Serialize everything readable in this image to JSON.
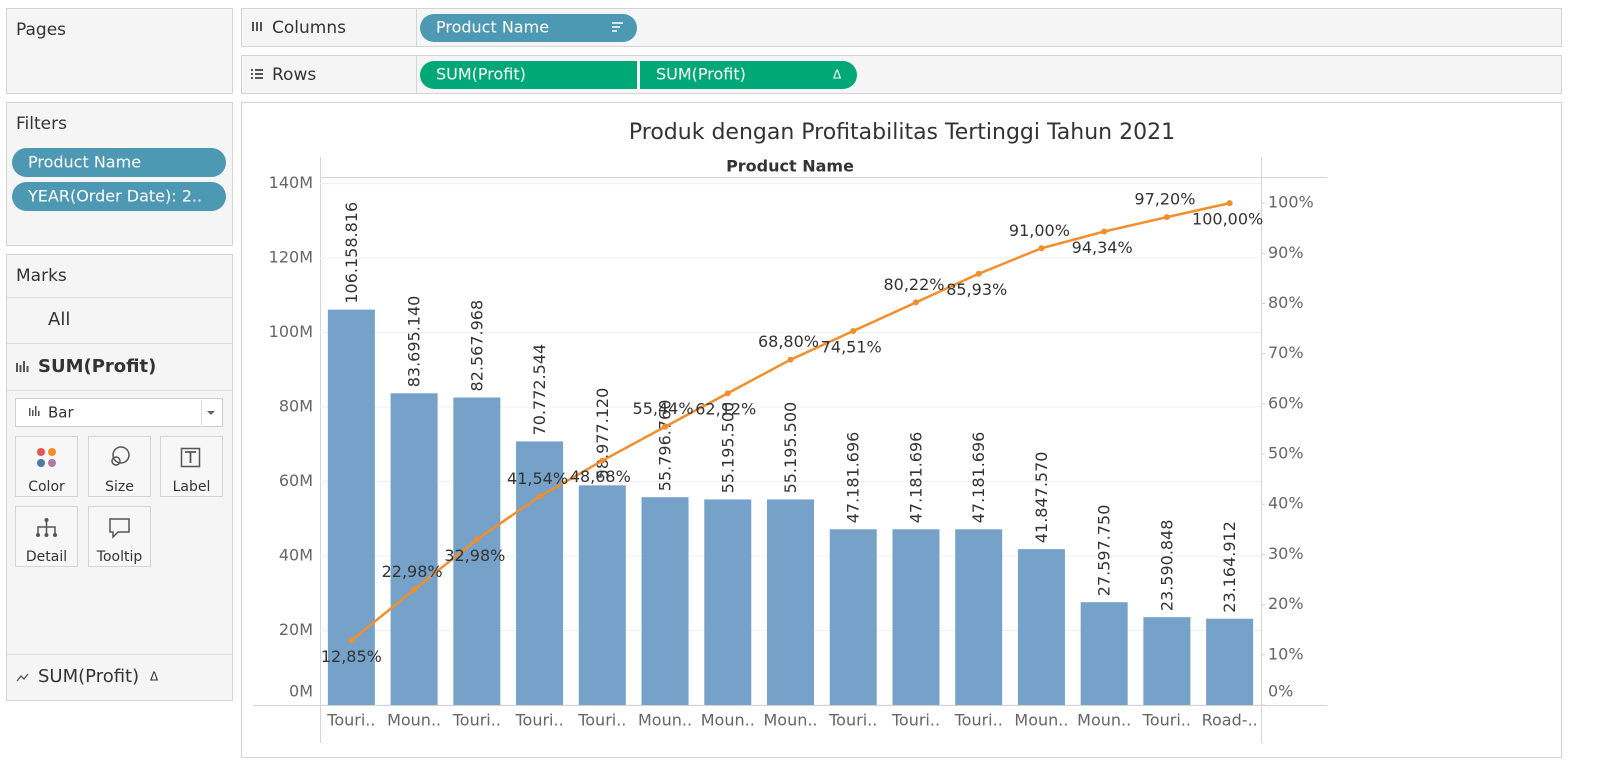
{
  "ui": {
    "pages": "Pages",
    "filters": "Filters",
    "year_filter": "YEAR(Order Date): 2..",
    "marks": "Marks",
    "all": "All",
    "mark_type": "Bar",
    "buttons": [
      "Color",
      "Size",
      "Label",
      "Detail",
      "Tooltip"
    ],
    "columns": "Columns",
    "rows": "Rows",
    "delta": "Δ"
  },
  "chart_data": {
    "type": "bar",
    "title": "Produk dengan Profitabilitas Tertinggi Tahun 2021",
    "x_label": "Product Name",
    "categories": [
      "Touri..",
      "Moun..",
      "Touri..",
      "Touri..",
      "Touri..",
      "Moun..",
      "Moun..",
      "Moun..",
      "Touri..",
      "Touri..",
      "Touri..",
      "Moun..",
      "Moun..",
      "Touri..",
      "Road-.."
    ],
    "series": [
      {
        "name": "SUM(Profit)",
        "type": "bar",
        "color": "#76a1c8",
        "values": [
          106158816,
          83695140,
          82567968,
          70772544,
          58977120,
          55796760,
          55195500,
          55195500,
          47181696,
          47181696,
          47181696,
          41847570,
          27597750,
          23590848,
          23164912
        ],
        "value_labels": [
          "106.158.816",
          "83.695.140",
          "82.567.968",
          "70.772.544",
          "58.977.120",
          "55.796.760",
          "55.195.500",
          "55.195.500",
          "47.181.696",
          "47.181.696",
          "47.181.696",
          "41.847.570",
          "27.597.750",
          "23.590.848",
          "23.164.912"
        ]
      },
      {
        "name": "SUM(Profit)",
        "type": "line",
        "axis": "y2",
        "color": "#f28e2b",
        "values": [
          12.85,
          22.98,
          32.98,
          41.54,
          48.68,
          55.44,
          62.12,
          68.8,
          74.51,
          80.22,
          85.93,
          91.0,
          94.34,
          97.2,
          100.0
        ],
        "value_labels": [
          "12,85%",
          "22,98%",
          "32,98%",
          "41,54%",
          "48,68%",
          "55,44%",
          "62,12%",
          "68,80%",
          "74,51%",
          "80,22%",
          "85,93%",
          "91,00%",
          "94,34%",
          "97,20%",
          "100,00%"
        ]
      }
    ],
    "ylim": [
      0,
      141500000
    ],
    "yticks": [
      {
        "value": 0,
        "label": "0M"
      },
      {
        "value": 20000000,
        "label": "20M"
      },
      {
        "value": 40000000,
        "label": "40M"
      },
      {
        "value": 60000000,
        "label": "60M"
      },
      {
        "value": 80000000,
        "label": "80M"
      },
      {
        "value": 100000000,
        "label": "100M"
      },
      {
        "value": 120000000,
        "label": "120M"
      },
      {
        "value": 140000000,
        "label": "140M"
      }
    ],
    "y2lim": [
      0,
      105
    ],
    "y2ticks": [
      {
        "value": 0,
        "label": "0%"
      },
      {
        "value": 10,
        "label": "10%"
      },
      {
        "value": 20,
        "label": "20%"
      },
      {
        "value": 30,
        "label": "30%"
      },
      {
        "value": 40,
        "label": "40%"
      },
      {
        "value": 50,
        "label": "50%"
      },
      {
        "value": 60,
        "label": "60%"
      },
      {
        "value": 70,
        "label": "70%"
      },
      {
        "value": 80,
        "label": "80%"
      },
      {
        "value": 90,
        "label": "90%"
      },
      {
        "value": 100,
        "label": "100%"
      }
    ],
    "grid": true
  }
}
